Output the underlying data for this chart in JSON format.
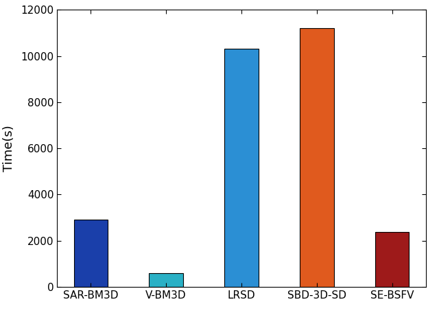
{
  "categories": [
    "SAR-BM3D",
    "V-BM3D",
    "LRSD",
    "SBD-3D-SD",
    "SE-BSFV"
  ],
  "values": [
    2900,
    580,
    10300,
    11200,
    2380
  ],
  "bar_colors": [
    "#1a3faa",
    "#2ab0c5",
    "#2b8fd4",
    "#e05a1e",
    "#9e1a1a"
  ],
  "ylabel": "Time(s)",
  "ylim": [
    0,
    12000
  ],
  "yticks": [
    0,
    2000,
    4000,
    6000,
    8000,
    10000,
    12000
  ],
  "bar_width": 0.45,
  "edge_color": "black",
  "edge_linewidth": 0.8,
  "background_color": "#ffffff",
  "tick_labelsize": 11,
  "ylabel_fontsize": 13,
  "ylabel_rotation": 90,
  "figsize": [
    6.4,
    4.75
  ],
  "dpi": 100
}
